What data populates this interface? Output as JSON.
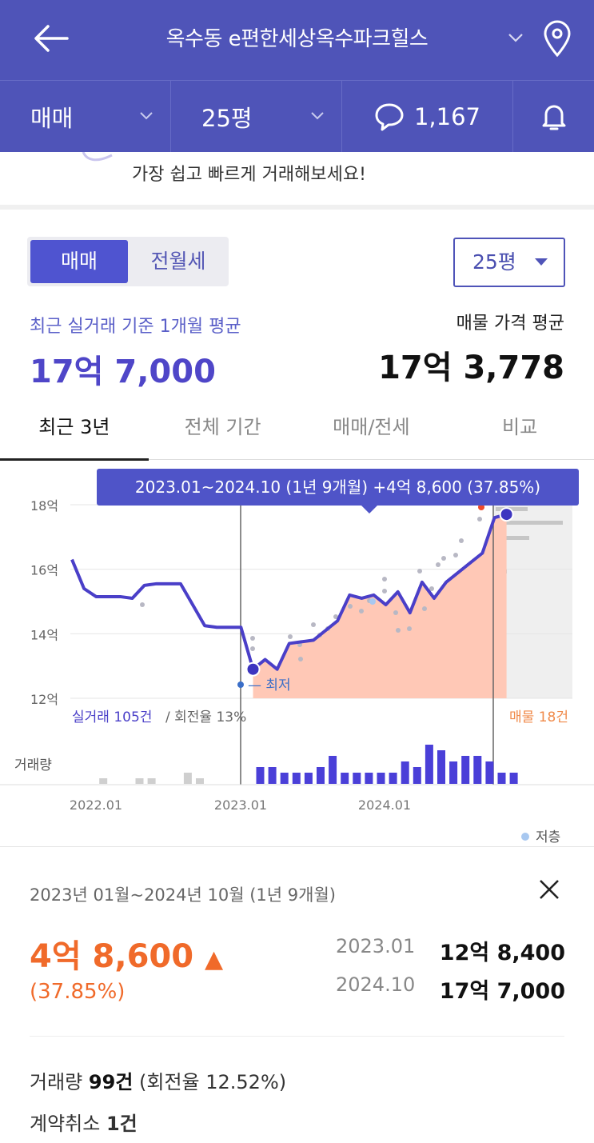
{
  "header": {
    "title": "옥수동 e편한세상옥수파크힐스"
  },
  "subbar": {
    "trade_type": "매매",
    "area": "25평",
    "comment_count": "1,167"
  },
  "banner": {
    "text": "가장 쉽고 빠르게 거래해보세요!"
  },
  "toggle": {
    "sale": "매매",
    "rent": "전월세"
  },
  "area_select": "25평",
  "summary": {
    "recent_label": "최근 실거래 기준 1개월 평균",
    "recent_value": "17억 7,000",
    "listing_label": "매물 가격 평균",
    "listing_value": "17억 3,778"
  },
  "tabs": [
    "최근 3년",
    "전체 기간",
    "매매/전세",
    "비교"
  ],
  "tooltip": "2023.01~2024.10 (1년 9개월)  +4억 8,600 (37.85%)",
  "chart_data": {
    "type": "line",
    "yticks": [
      "18억",
      "16억",
      "14억",
      "12억"
    ],
    "ylim": [
      12,
      18.6
    ],
    "xticks": [
      "2022.01",
      "2023.01",
      "2024.01"
    ],
    "min_label": "최저",
    "trade_count_label": "실거래 105건",
    "turnover_label": "/ 회전율 13%",
    "listing_count_label": "매물 18건",
    "volume_label": "거래량",
    "legend_low_floor": "저층",
    "series": [
      {
        "values": [
          16.3,
          15.4,
          15.15,
          15.15,
          15.15,
          15.1,
          15.5,
          15.55,
          15.55,
          15.55,
          14.9,
          14.25,
          14.2,
          14.2,
          14.2,
          12.9,
          13.2,
          12.9,
          13.7,
          13.75,
          13.8,
          14.1,
          14.4,
          15.2,
          15.1,
          15.2,
          14.9,
          15.3,
          14.65,
          15.6,
          15.1,
          15.6,
          15.9,
          16.2,
          16.5,
          17.6,
          17.7
        ]
      }
    ],
    "volume": [
      0,
      0,
      1,
      0,
      0,
      1,
      1,
      0,
      0,
      2,
      1,
      0,
      0,
      0,
      0,
      3,
      3,
      2,
      2,
      2,
      3,
      5,
      2,
      2,
      2,
      2,
      2,
      4,
      3,
      7,
      6,
      4,
      5,
      5,
      4,
      2,
      2
    ]
  },
  "detail": {
    "range": "2023년 01월~2024년 10월 (1년 9개월)",
    "change": "4억 8,600",
    "change_pct": "(37.85%)",
    "start_date": "2023.01",
    "start_value": "12억 8,400",
    "end_date": "2024.10",
    "end_value": "17억 7,000",
    "volume_prefix": "거래량",
    "volume_value": "99건",
    "volume_suffix": "(회전율 12.52%)",
    "cancel_prefix": "계약취소",
    "cancel_value": "1건"
  },
  "colors": {
    "brand": "#4f54b8",
    "line": "#4a3fc8",
    "area_fill": "#ffc8b6",
    "up": "#f06a2a"
  }
}
